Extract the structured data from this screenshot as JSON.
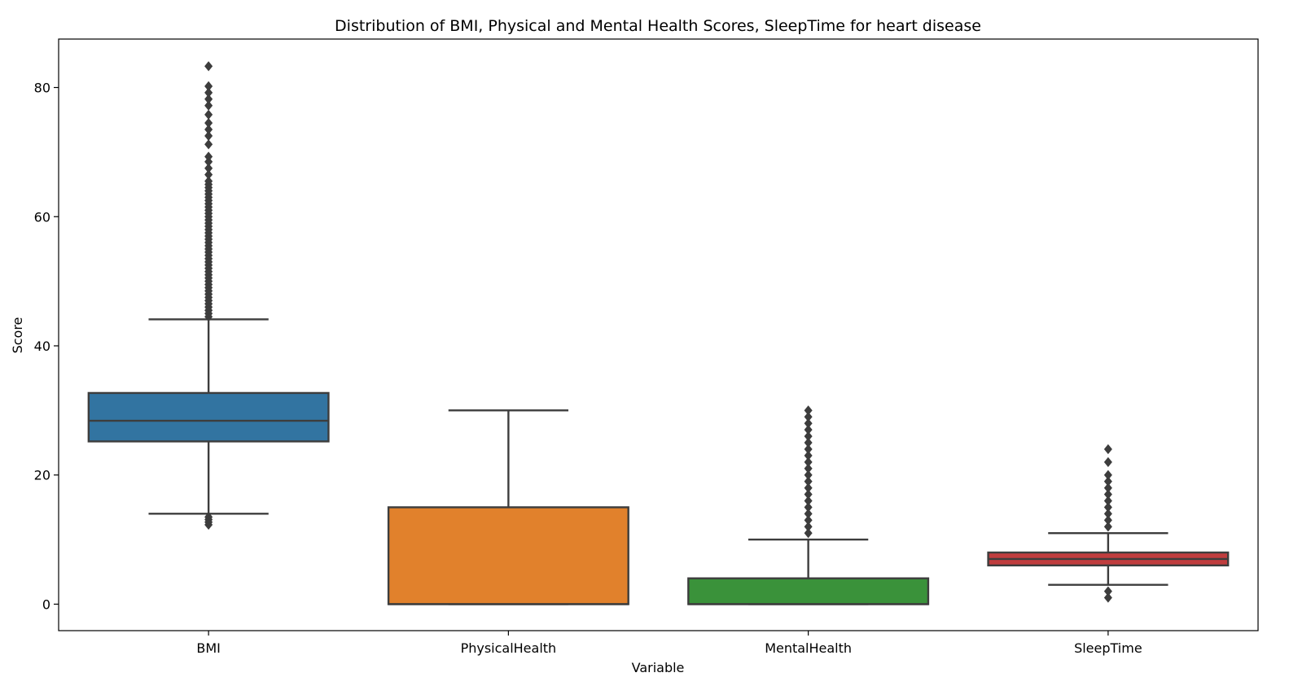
{
  "chart_data": {
    "type": "box",
    "title": "Distribution of BMI, Physical and Mental Health Scores, SleepTime for heart disease",
    "xlabel": "Variable",
    "ylabel": "Score",
    "ylim": [
      -4.1,
      87.5
    ],
    "yticks": [
      0,
      20,
      40,
      60,
      80
    ],
    "grid": false,
    "categories": [
      "BMI",
      "PhysicalHealth",
      "MentalHealth",
      "SleepTime"
    ],
    "colors": [
      "#3274a1",
      "#e1812c",
      "#3a923a",
      "#c03d3e"
    ],
    "line_color": "#3d3d3d",
    "boxes": [
      {
        "name": "BMI",
        "whisker_low": 14,
        "q1": 25.2,
        "median": 28.4,
        "q3": 32.7,
        "whisker_high": 44.1,
        "outliers": [
          12.3,
          12.7,
          13.1,
          13.5,
          44.5,
          45,
          45.5,
          46,
          46.5,
          47,
          47.5,
          48,
          48.5,
          49,
          49.5,
          50,
          50.5,
          51,
          51.5,
          52,
          52.5,
          53,
          53.5,
          54,
          54.5,
          55,
          55.5,
          56,
          56.5,
          57,
          57.5,
          58,
          58.5,
          59,
          59.5,
          60,
          60.5,
          61,
          61.5,
          62,
          62.5,
          63,
          63.5,
          64,
          64.5,
          65,
          65.5,
          66.5,
          67.5,
          68.5,
          69.3,
          71.2,
          72.5,
          73.5,
          74.5,
          75.8,
          77.2,
          78.2,
          79.2,
          80.2,
          83.3
        ]
      },
      {
        "name": "PhysicalHealth",
        "whisker_low": 0,
        "q1": 0,
        "median": 0,
        "q3": 15,
        "whisker_high": 30,
        "outliers": []
      },
      {
        "name": "MentalHealth",
        "whisker_low": 0,
        "q1": 0,
        "median": 0,
        "q3": 4,
        "whisker_high": 10,
        "outliers": [
          11,
          12,
          13,
          14,
          15,
          16,
          17,
          18,
          19,
          20,
          21,
          22,
          23,
          24,
          25,
          26,
          27,
          28,
          29,
          30
        ]
      },
      {
        "name": "SleepTime",
        "whisker_low": 3,
        "q1": 6,
        "median": 7,
        "q3": 8,
        "whisker_high": 11,
        "outliers": [
          1,
          2,
          12,
          13,
          14,
          15,
          16,
          17,
          18,
          19,
          20,
          22,
          24
        ]
      }
    ]
  }
}
